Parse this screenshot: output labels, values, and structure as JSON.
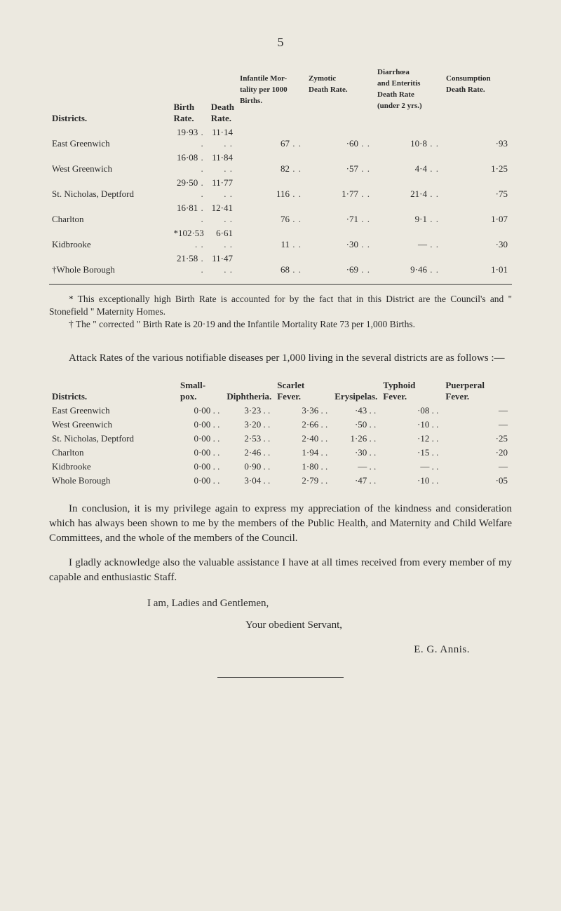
{
  "page_number": "5",
  "table1": {
    "headers": {
      "districts": "Districts.",
      "birth_rate": "Birth\nRate.",
      "death_rate": "Death\nRate.",
      "infantile": "Infantile Mor-\ntality per 1000\nBirths.",
      "zymotic": "Zymotic\nDeath Rate.",
      "diarrhoea": "Diarrhœa\nand Enteritis\nDeath Rate\n(under 2 yrs.)",
      "consumption": "Consumption\nDeath Rate."
    },
    "rows": [
      {
        "district": "East Greenwich",
        "birth": "19·93",
        "death": "11·14",
        "infantile": "67",
        "zymotic": "·60",
        "diarrhoea": "10·8",
        "consumption": "·93"
      },
      {
        "district": "West Greenwich",
        "birth": "16·08",
        "death": "11·84",
        "infantile": "82",
        "zymotic": "·57",
        "diarrhoea": "4·4",
        "consumption": "1·25"
      },
      {
        "district": "St. Nicholas, Deptford",
        "birth": "29·50",
        "death": "11·77",
        "infantile": "116",
        "zymotic": "1·77",
        "diarrhoea": "21·4",
        "consumption": "·75"
      },
      {
        "district": "Charlton",
        "birth": "16·81",
        "death": "12·41",
        "infantile": "76",
        "zymotic": "·71",
        "diarrhoea": "9·1",
        "consumption": "1·07"
      },
      {
        "district": "Kidbrooke",
        "birth": "*102·53",
        "death": "6·61",
        "infantile": "11",
        "zymotic": "·30",
        "diarrhoea": "—",
        "consumption": "·30"
      },
      {
        "district": "†Whole Borough",
        "birth": "21·58",
        "death": "11·47",
        "infantile": "68",
        "zymotic": "·69",
        "diarrhoea": "9·46",
        "consumption": "1·01"
      }
    ]
  },
  "footnote": {
    "line1": "* This exceptionally high Birth Rate is accounted for by the fact that in this District are the Council's and \" Stonefield \" Maternity Homes.",
    "line2": "† The \" corrected \" Birth Rate is 20·19 and the Infantile Mortality Rate 73 per 1,000 Births."
  },
  "attack_para": "Attack Rates of the various notifiable diseases per 1,000 living in the several districts are as follows :—",
  "table2": {
    "headers": {
      "districts": "Districts.",
      "smallpox": "Small-pox.",
      "diphtheria": "Diphtheria.",
      "scarlet": "Scarlet\nFever.",
      "erysipelas": "Erysipelas.",
      "typhoid": "Typhoid\nFever.",
      "puerperal": "Puerperal\nFever."
    },
    "rows": [
      {
        "district": "East Greenwich",
        "smallpox": "0·00",
        "diphtheria": "3·23",
        "scarlet": "3·36",
        "erysipelas": "·43",
        "typhoid": "·08",
        "puerperal": "—"
      },
      {
        "district": "West Greenwich",
        "smallpox": "0·00",
        "diphtheria": "3·20",
        "scarlet": "2·66",
        "erysipelas": "·50",
        "typhoid": "·10",
        "puerperal": "—"
      },
      {
        "district": "St. Nicholas, Deptford",
        "smallpox": "0·00",
        "diphtheria": "2·53",
        "scarlet": "2·40",
        "erysipelas": "1·26",
        "typhoid": "·12",
        "puerperal": "·25"
      },
      {
        "district": "Charlton",
        "smallpox": "0·00",
        "diphtheria": "2·46",
        "scarlet": "1·94",
        "erysipelas": "·30",
        "typhoid": "·15",
        "puerperal": "·20"
      },
      {
        "district": "Kidbrooke",
        "smallpox": "0·00",
        "diphtheria": "0·90",
        "scarlet": "1·80",
        "erysipelas": "—",
        "typhoid": "—",
        "puerperal": "—"
      },
      {
        "district": "Whole Borough",
        "smallpox": "0·00",
        "diphtheria": "3·04",
        "scarlet": "2·79",
        "erysipelas": "·47",
        "typhoid": "·10",
        "puerperal": "·05"
      }
    ]
  },
  "para_conclusion": "In conclusion, it is my privilege again to express my appreciation of the kindness and consideration which has always been shown to me by the members of the Public Health, and Maternity and Child Welfare Committees, and the whole of the members of the Council.",
  "para_ack": "I gladly acknowledge also the valuable assistance I have at all times received from every member of my capable and enthusiastic Staff.",
  "sig": {
    "line1": "I am, Ladies and Gentlemen,",
    "line2": "Your obedient Servant,",
    "name": "E. G. Annis."
  },
  "dots": " . . "
}
